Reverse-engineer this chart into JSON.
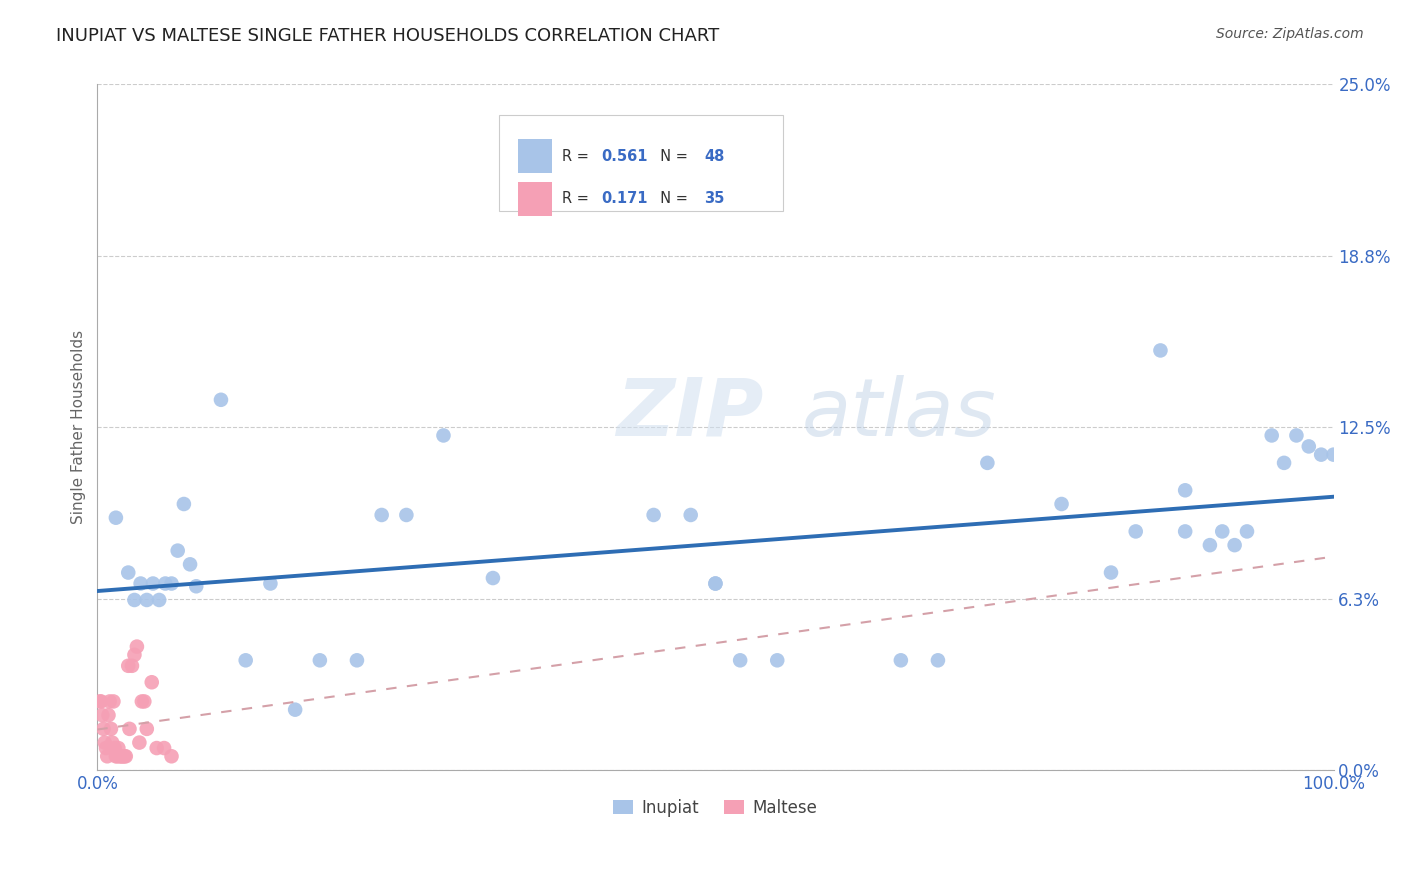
{
  "title": "INUPIAT VS MALTESE SINGLE FATHER HOUSEHOLDS CORRELATION CHART",
  "source": "Source: ZipAtlas.com",
  "ylabel": "Single Father Households",
  "xlabel": "",
  "legend_r_inupiat": "0.561",
  "legend_n_inupiat": "48",
  "legend_r_maltese": "0.171",
  "legend_n_maltese": "35",
  "inupiat_color": "#a8c4e8",
  "maltese_color": "#f5a0b5",
  "inupiat_line_color": "#2e6db4",
  "maltese_line_color": "#e8b0b8",
  "watermark_zip": "ZIP",
  "watermark_atlas": "atlas",
  "xlim": [
    0.0,
    1.0
  ],
  "ylim": [
    0.0,
    0.25
  ],
  "yticks": [
    0.0,
    0.0625,
    0.125,
    0.1875,
    0.25
  ],
  "ytick_labels": [
    "0.0%",
    "6.3%",
    "12.5%",
    "18.8%",
    "25.0%"
  ],
  "inupiat_x": [
    0.015,
    0.025,
    0.03,
    0.035,
    0.04,
    0.045,
    0.05,
    0.055,
    0.06,
    0.065,
    0.07,
    0.075,
    0.08,
    0.1,
    0.12,
    0.14,
    0.16,
    0.18,
    0.21,
    0.23,
    0.25,
    0.28,
    0.32,
    0.45,
    0.48,
    0.5,
    0.5,
    0.52,
    0.55,
    0.65,
    0.68,
    0.72,
    0.78,
    0.82,
    0.84,
    0.86,
    0.88,
    0.88,
    0.9,
    0.91,
    0.92,
    0.93,
    0.95,
    0.96,
    0.97,
    0.98,
    0.99,
    1.0
  ],
  "inupiat_y": [
    0.092,
    0.072,
    0.062,
    0.068,
    0.062,
    0.068,
    0.062,
    0.068,
    0.068,
    0.08,
    0.097,
    0.075,
    0.067,
    0.135,
    0.04,
    0.068,
    0.022,
    0.04,
    0.04,
    0.093,
    0.093,
    0.122,
    0.07,
    0.093,
    0.093,
    0.068,
    0.068,
    0.04,
    0.04,
    0.04,
    0.04,
    0.112,
    0.097,
    0.072,
    0.087,
    0.153,
    0.102,
    0.087,
    0.082,
    0.087,
    0.082,
    0.087,
    0.122,
    0.112,
    0.122,
    0.118,
    0.115,
    0.115
  ],
  "maltese_x": [
    0.002,
    0.003,
    0.004,
    0.005,
    0.006,
    0.007,
    0.008,
    0.009,
    0.01,
    0.011,
    0.012,
    0.013,
    0.014,
    0.015,
    0.016,
    0.017,
    0.018,
    0.019,
    0.02,
    0.021,
    0.022,
    0.023,
    0.025,
    0.026,
    0.028,
    0.03,
    0.032,
    0.034,
    0.036,
    0.038,
    0.04,
    0.044,
    0.048,
    0.054,
    0.06
  ],
  "maltese_y": [
    0.025,
    0.025,
    0.02,
    0.015,
    0.01,
    0.008,
    0.005,
    0.02,
    0.025,
    0.015,
    0.01,
    0.025,
    0.008,
    0.005,
    0.005,
    0.008,
    0.005,
    0.005,
    0.005,
    0.005,
    0.005,
    0.005,
    0.038,
    0.015,
    0.038,
    0.042,
    0.045,
    0.01,
    0.025,
    0.025,
    0.015,
    0.032,
    0.008,
    0.008,
    0.005
  ]
}
